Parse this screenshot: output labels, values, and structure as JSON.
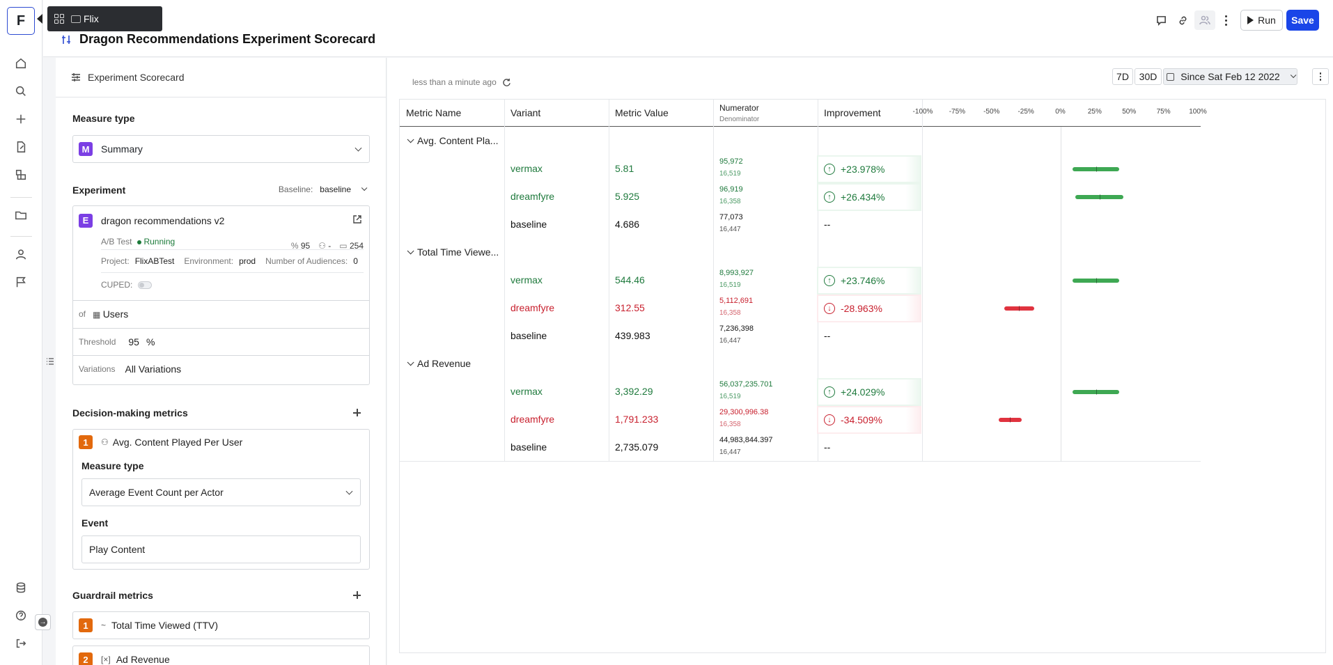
{
  "app": {
    "logo_letter": "F",
    "breadcrumb": "Flix"
  },
  "header": {
    "title": "Dragon Recommendations Experiment Scorecard",
    "run_label": "Run",
    "save_label": "Save",
    "icons": [
      "comment-icon",
      "link-icon",
      "share-users-icon",
      "more-icon"
    ]
  },
  "panel": {
    "heading": "Experiment Scorecard",
    "measure_type_label": "Measure type",
    "measure_type": {
      "badge": "M",
      "value": "Summary"
    },
    "experiment_label": "Experiment",
    "baseline_label": "Baseline:",
    "baseline_value": "baseline",
    "experiment": {
      "badge": "E",
      "name": "dragon recommendations v2",
      "type": "A/B Test",
      "status": "Running",
      "percent": "95",
      "audience": "-",
      "count": "254",
      "project_label": "Project:",
      "project": "FlixABTest",
      "env_label": "Environment:",
      "env": "prod",
      "audiences_label": "Number of Audiences:",
      "audiences": "0",
      "cuped_label": "CUPED:"
    },
    "of_label": "of",
    "of_value": "Users",
    "threshold_label": "Threshold",
    "threshold_value": "95",
    "threshold_unit": "%",
    "variations_label": "Variations",
    "variations_value": "All Variations",
    "decision_label": "Decision-making metrics",
    "decision_metric": {
      "index": "1",
      "name": "Avg. Content Played Per User",
      "measure_label": "Measure type",
      "measure_value": "Average Event Count per Actor",
      "event_label": "Event",
      "event_value": "Play Content"
    },
    "guardrail_label": "Guardrail metrics",
    "guardrails": [
      {
        "index": "1",
        "icon": "~",
        "name": "Total Time Viewed (TTV)"
      },
      {
        "index": "2",
        "icon": "[×]",
        "name": "Ad Revenue"
      }
    ]
  },
  "main": {
    "updated": "less than a minute ago",
    "ranges": [
      "7D",
      "30D"
    ],
    "since": "Since Sat Feb 12 2022",
    "columns": {
      "metric": "Metric Name",
      "variant": "Variant",
      "value": "Metric Value",
      "numerator": "Numerator",
      "denominator": "Denominator",
      "improvement": "Improvement"
    },
    "ticks": [
      "-100%",
      "-75%",
      "-50%",
      "-25%",
      "0%",
      "25%",
      "50%",
      "75%",
      "100%"
    ],
    "groups": [
      {
        "name": "Avg. Content Pla...",
        "rows": [
          {
            "variant": "vermax",
            "value": "5.81",
            "num": "95,972",
            "den": "16,519",
            "imp": "+23.978%",
            "dir": "up",
            "lo": 9,
            "hi": 43
          },
          {
            "variant": "dreamfyre",
            "value": "5.925",
            "num": "96,919",
            "den": "16,358",
            "imp": "+26.434%",
            "dir": "up",
            "lo": 11,
            "hi": 46
          },
          {
            "variant": "baseline",
            "value": "4.686",
            "num": "77,073",
            "den": "16,447",
            "imp": "--",
            "dir": "none"
          }
        ]
      },
      {
        "name": "Total Time Viewe...",
        "rows": [
          {
            "variant": "vermax",
            "value": "544.46",
            "num": "8,993,927",
            "den": "16,519",
            "imp": "+23.746%",
            "dir": "up",
            "lo": 9,
            "hi": 43
          },
          {
            "variant": "dreamfyre",
            "value": "312.55",
            "num": "5,112,691",
            "den": "16,358",
            "imp": "-28.963%",
            "dir": "down",
            "lo": -41,
            "hi": -19
          },
          {
            "variant": "baseline",
            "value": "439.983",
            "num": "7,236,398",
            "den": "16,447",
            "imp": "--",
            "dir": "none"
          }
        ]
      },
      {
        "name": "Ad Revenue",
        "rows": [
          {
            "variant": "vermax",
            "value": "3,392.29",
            "num": "56,037,235.701",
            "den": "16,519",
            "imp": "+24.029%",
            "dir": "up",
            "lo": 9,
            "hi": 43
          },
          {
            "variant": "dreamfyre",
            "value": "1,791.233",
            "num": "29,300,996.38",
            "den": "16,358",
            "imp": "-34.509%",
            "dir": "down",
            "lo": -45,
            "hi": -28
          },
          {
            "variant": "baseline",
            "value": "2,735.079",
            "num": "44,983,844.397",
            "den": "16,447",
            "imp": "--",
            "dir": "none"
          }
        ]
      }
    ]
  }
}
